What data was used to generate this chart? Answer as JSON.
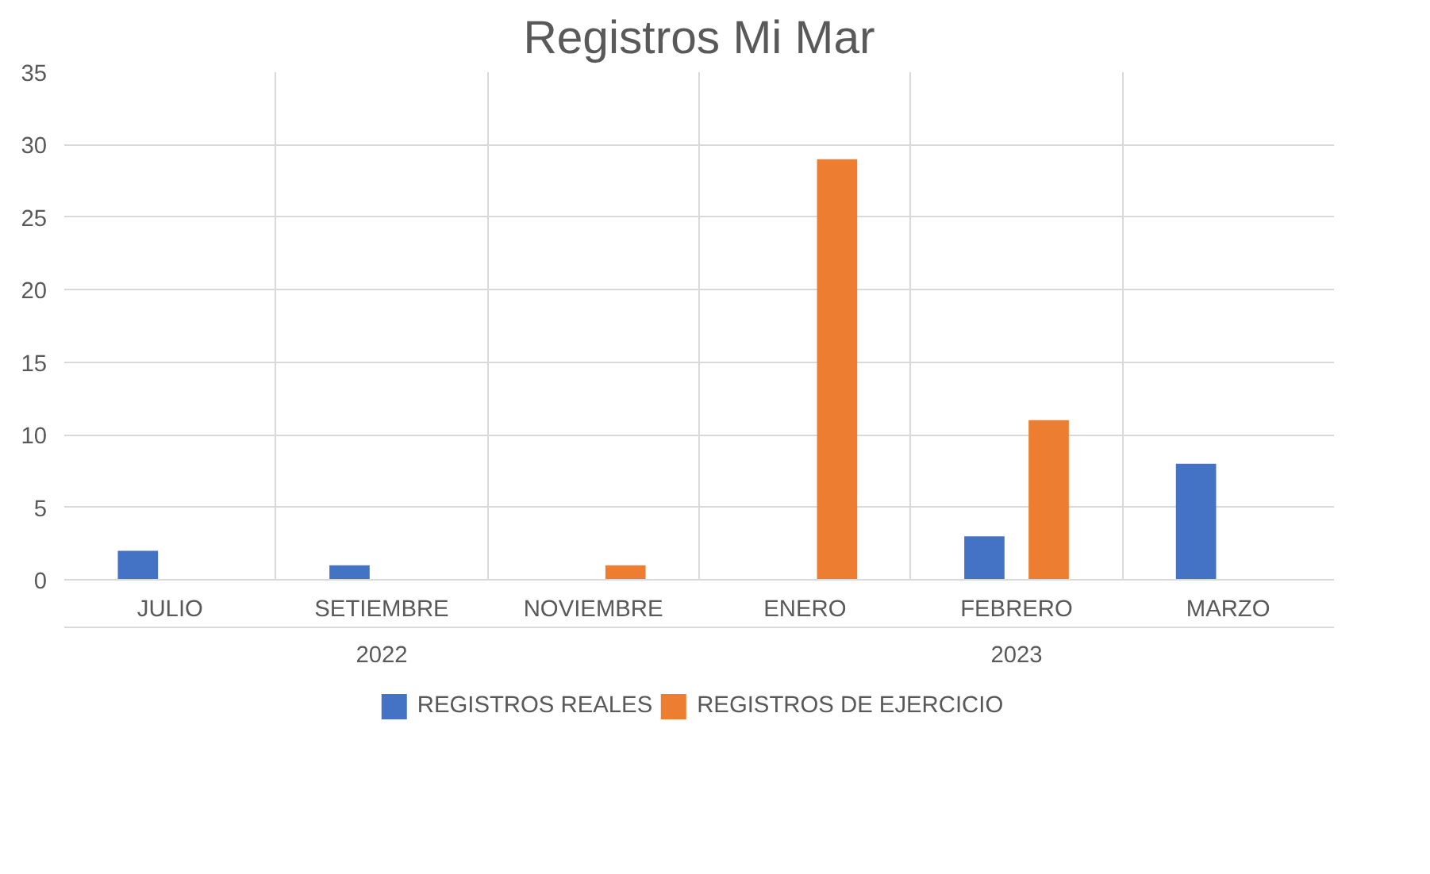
{
  "chart_data": {
    "type": "bar",
    "title": "Registros Mi Mar",
    "categories": [
      "JULIO",
      "SETIEMBRE",
      "NOVIEMBRE",
      "ENERO",
      "FEBRERO",
      "MARZO"
    ],
    "series": [
      {
        "name": "REGISTROS REALES",
        "color": "#4472c4",
        "values": [
          2,
          1,
          null,
          null,
          3,
          8
        ]
      },
      {
        "name": "REGISTROS DE EJERCICIO",
        "color": "#ed7d31",
        "values": [
          null,
          null,
          1,
          29,
          11,
          null
        ]
      }
    ],
    "annotations": [
      "2022",
      "2023"
    ],
    "ylim": [
      0,
      35
    ],
    "yticks": [
      0,
      5,
      10,
      15,
      20,
      25,
      30,
      35
    ],
    "grid": true,
    "legend": "bottom"
  }
}
